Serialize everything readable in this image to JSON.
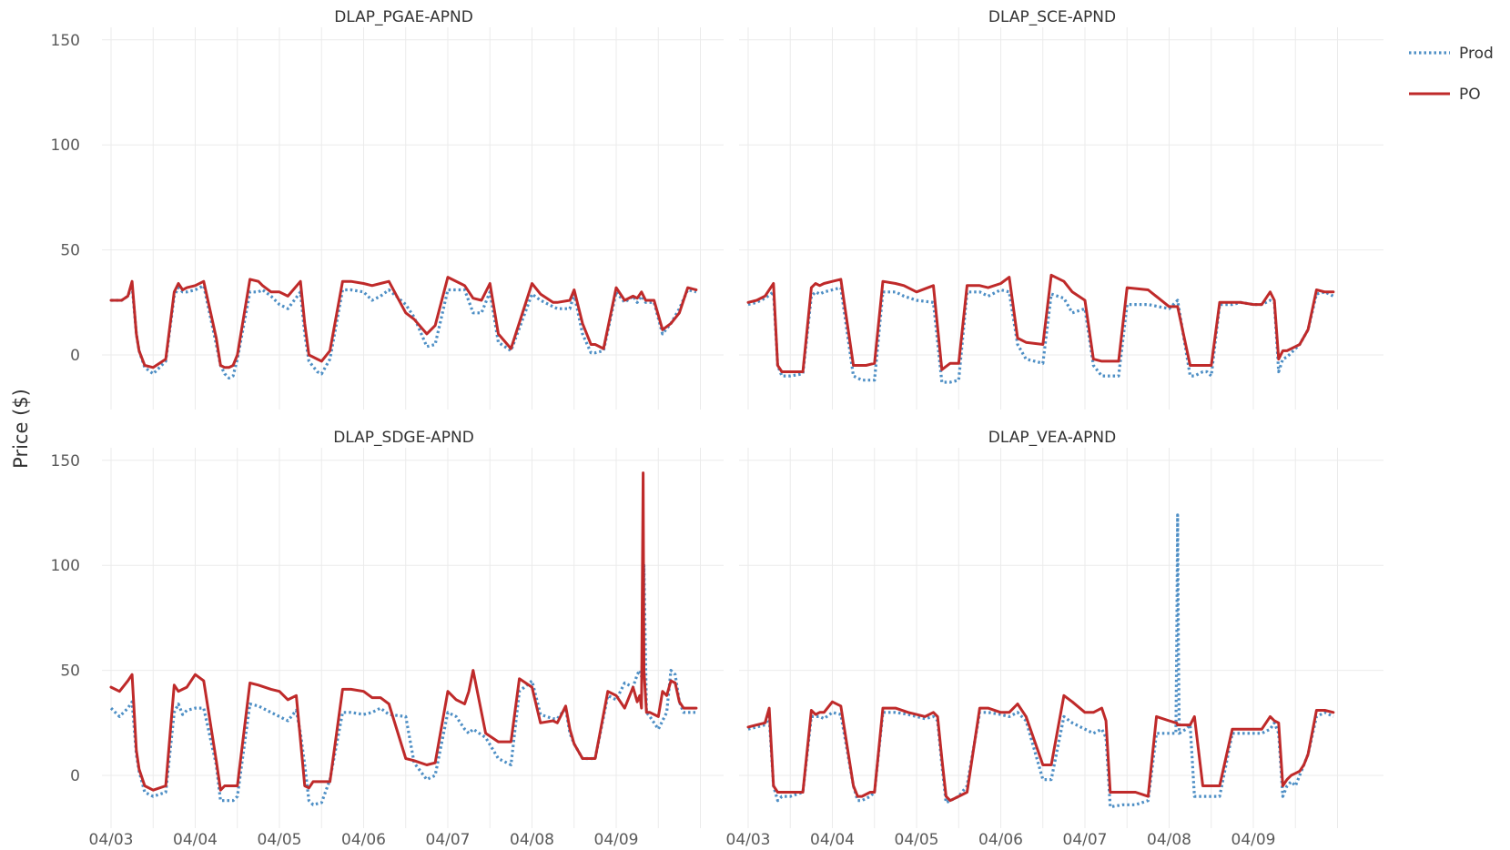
{
  "chart_data": {
    "type": "line",
    "ylabel": "Price ($)",
    "ylim": [
      -25,
      152
    ],
    "yticks": [
      0,
      50,
      100,
      150
    ],
    "x_start": "04/03",
    "x_ticks": [
      "04/03",
      "04/04",
      "04/05",
      "04/06",
      "04/07",
      "04/08",
      "04/09"
    ],
    "grid": true,
    "legend": {
      "position": "top-right",
      "entries": [
        "Prod",
        "PO"
      ]
    },
    "series_styles": [
      {
        "name": "Prod",
        "color": "#4e8fc5",
        "dash": "dotted"
      },
      {
        "name": "PO",
        "color": "#bf2a2a",
        "dash": "solid"
      }
    ],
    "panels": [
      {
        "title": "DLAP_PGAE-APND",
        "x": [
          0,
          0.125,
          0.2,
          0.25,
          0.3,
          0.333,
          0.4,
          0.5,
          0.65,
          0.75,
          0.8,
          0.85,
          0.9,
          1.0,
          1.1,
          1.25,
          1.3,
          1.35,
          1.4,
          1.45,
          1.5,
          1.65,
          1.75,
          1.8,
          1.9,
          2.0,
          2.1,
          2.25,
          2.3,
          2.35,
          2.45,
          2.5,
          2.6,
          2.75,
          2.85,
          3.0,
          3.1,
          3.2,
          3.3,
          3.5,
          3.6,
          3.75,
          3.85,
          4.0,
          4.2,
          4.3,
          4.4,
          4.5,
          4.6,
          4.75,
          5.0,
          5.1,
          5.25,
          5.3,
          5.45,
          5.5,
          5.6,
          5.7,
          5.75,
          5.85,
          6.0,
          6.1,
          6.2,
          6.25,
          6.3,
          6.35,
          6.45,
          6.55,
          6.65,
          6.75,
          6.85,
          6.95
        ],
        "series": [
          {
            "name": "Prod",
            "values": [
              26,
              26,
              28,
              33,
              10,
              2,
              -6,
              -9,
              -3,
              28,
              32,
              30,
              30,
              31,
              33,
              5,
              -5,
              -9,
              -11,
              -10,
              -2,
              30,
              30,
              31,
              28,
              24,
              22,
              30,
              10,
              -3,
              -8,
              -9,
              -2,
              31,
              31,
              30,
              26,
              28,
              31,
              24,
              18,
              4,
              5,
              31,
              31,
              20,
              20,
              30,
              6,
              2,
              29,
              26,
              23,
              22,
              22,
              29,
              10,
              1,
              1,
              2,
              30,
              25,
              28,
              25,
              28,
              25,
              25,
              10,
              15,
              22,
              31,
              30
            ]
          },
          {
            "name": "PO",
            "values": [
              26,
              26,
              28,
              35,
              10,
              2,
              -5,
              -6,
              -2,
              30,
              34,
              31,
              32,
              33,
              35,
              8,
              -5,
              -6,
              -6,
              -5,
              0,
              36,
              35,
              33,
              30,
              30,
              28,
              35,
              15,
              0,
              -2,
              -3,
              2,
              35,
              35,
              34,
              33,
              34,
              35,
              20,
              17,
              10,
              14,
              37,
              33,
              27,
              26,
              34,
              10,
              3,
              34,
              29,
              25,
              25,
              26,
              31,
              15,
              5,
              5,
              3,
              32,
              26,
              28,
              27,
              30,
              26,
              26,
              12,
              15,
              20,
              32,
              31
            ]
          }
        ]
      },
      {
        "title": "DLAP_SCE-APND",
        "x": [
          0,
          0.1,
          0.2,
          0.3,
          0.35,
          0.4,
          0.5,
          0.65,
          0.75,
          0.8,
          0.85,
          0.9,
          1.0,
          1.1,
          1.25,
          1.35,
          1.4,
          1.5,
          1.6,
          1.75,
          1.85,
          2.0,
          2.2,
          2.3,
          2.4,
          2.5,
          2.6,
          2.75,
          2.85,
          3.0,
          3.1,
          3.2,
          3.3,
          3.5,
          3.6,
          3.75,
          3.85,
          4.0,
          4.1,
          4.2,
          4.3,
          4.4,
          4.5,
          4.75,
          5.0,
          5.1,
          5.25,
          5.3,
          5.4,
          5.45,
          5.5,
          5.6,
          5.75,
          5.85,
          6.0,
          6.1,
          6.2,
          6.25,
          6.3,
          6.35,
          6.4,
          6.5,
          6.55,
          6.65,
          6.75,
          6.85,
          6.95
        ],
        "series": [
          {
            "name": "Prod",
            "values": [
              24,
              25,
              27,
              30,
              -5,
              -10,
              -10,
              -9,
              28,
              30,
              29,
              30,
              31,
              32,
              -10,
              -12,
              -12,
              -12,
              30,
              30,
              28,
              26,
              25,
              -13,
              -13,
              -12,
              30,
              30,
              28,
              31,
              30,
              5,
              -2,
              -4,
              29,
              27,
              20,
              22,
              -5,
              -10,
              -10,
              -10,
              24,
              24,
              22,
              26,
              -10,
              -10,
              -8,
              -8,
              -10,
              24,
              24,
              25,
              24,
              24,
              26,
              25,
              -8,
              -2,
              -1,
              3,
              5,
              12,
              29,
              30,
              28
            ]
          },
          {
            "name": "PO",
            "values": [
              25,
              26,
              28,
              34,
              -5,
              -8,
              -8,
              -8,
              32,
              34,
              33,
              34,
              35,
              36,
              -5,
              -5,
              -5,
              -4,
              35,
              34,
              33,
              30,
              33,
              -7,
              -4,
              -4,
              33,
              33,
              32,
              34,
              37,
              8,
              6,
              5,
              38,
              35,
              30,
              26,
              -2,
              -3,
              -3,
              -3,
              32,
              31,
              23,
              23,
              -5,
              -5,
              -5,
              -5,
              -5,
              25,
              25,
              25,
              24,
              24,
              30,
              26,
              -2,
              2,
              2,
              4,
              5,
              12,
              31,
              30,
              30
            ]
          }
        ]
      },
      {
        "title": "DLAP_SDGE-APND",
        "x": [
          0,
          0.1,
          0.2,
          0.25,
          0.3,
          0.333,
          0.4,
          0.5,
          0.65,
          0.75,
          0.8,
          0.85,
          0.9,
          1.0,
          1.1,
          1.25,
          1.3,
          1.35,
          1.45,
          1.5,
          1.65,
          1.75,
          1.9,
          2.0,
          2.1,
          2.2,
          2.25,
          2.3,
          2.35,
          2.4,
          2.5,
          2.6,
          2.75,
          2.85,
          3.0,
          3.1,
          3.2,
          3.3,
          3.5,
          3.6,
          3.75,
          3.85,
          4.0,
          4.1,
          4.2,
          4.25,
          4.3,
          4.45,
          4.6,
          4.75,
          4.85,
          5.0,
          5.1,
          5.25,
          5.3,
          5.4,
          5.45,
          5.5,
          5.6,
          5.75,
          5.9,
          6.0,
          6.1,
          6.2,
          6.25,
          6.28,
          6.3,
          6.32,
          6.33,
          6.36,
          6.4,
          6.5,
          6.55,
          6.6,
          6.65,
          6.7,
          6.75,
          6.8,
          6.95
        ],
        "series": [
          {
            "name": "Prod",
            "values": [
              32,
              28,
              32,
              35,
              10,
              2,
              -8,
              -10,
              -8,
              30,
              34,
              29,
              31,
              32,
              32,
              5,
              -12,
              -12,
              -12,
              -10,
              34,
              33,
              30,
              28,
              26,
              31,
              20,
              5,
              -12,
              -14,
              -13,
              -2,
              30,
              30,
              29,
              30,
              32,
              29,
              28,
              6,
              -2,
              0,
              30,
              28,
              22,
              20,
              22,
              18,
              8,
              5,
              40,
              45,
              29,
              27,
              27,
              32,
              20,
              15,
              8,
              8,
              38,
              36,
              44,
              42,
              48,
              50,
              47,
              60,
              100,
              30,
              28,
              22,
              26,
              30,
              50,
              48,
              35,
              30,
              30
            ]
          },
          {
            "name": "PO",
            "values": [
              42,
              40,
              45,
              48,
              12,
              3,
              -5,
              -7,
              -5,
              43,
              40,
              41,
              42,
              48,
              45,
              7,
              -7,
              -5,
              -5,
              -5,
              44,
              43,
              41,
              40,
              36,
              38,
              17,
              -5,
              -6,
              -3,
              -3,
              -3,
              41,
              41,
              40,
              37,
              37,
              34,
              8,
              7,
              5,
              6,
              40,
              36,
              34,
              40,
              50,
              20,
              16,
              16,
              46,
              42,
              25,
              26,
              25,
              33,
              22,
              15,
              8,
              8,
              40,
              38,
              32,
              42,
              35,
              38,
              32,
              144,
              50,
              30,
              30,
              28,
              40,
              38,
              45,
              44,
              35,
              32,
              32
            ]
          }
        ]
      },
      {
        "title": "DLAP_VEA-APND",
        "x": [
          0,
          0.1,
          0.2,
          0.25,
          0.3,
          0.35,
          0.4,
          0.5,
          0.65,
          0.75,
          0.8,
          0.85,
          0.9,
          1.0,
          1.1,
          1.25,
          1.3,
          1.35,
          1.45,
          1.5,
          1.6,
          1.75,
          1.9,
          2.0,
          2.1,
          2.2,
          2.25,
          2.3,
          2.35,
          2.4,
          2.5,
          2.6,
          2.75,
          2.85,
          3.0,
          3.1,
          3.2,
          3.3,
          3.5,
          3.6,
          3.75,
          3.85,
          4.0,
          4.1,
          4.2,
          4.25,
          4.3,
          4.45,
          4.6,
          4.75,
          4.85,
          5.0,
          5.08,
          5.09,
          5.1,
          5.11,
          5.12,
          5.2,
          5.25,
          5.3,
          5.4,
          5.5,
          5.6,
          5.75,
          5.85,
          6.0,
          6.1,
          6.2,
          6.25,
          6.3,
          6.35,
          6.4,
          6.45,
          6.5,
          6.55,
          6.6,
          6.65,
          6.75,
          6.85,
          6.95
        ],
        "series": [
          {
            "name": "Prod",
            "values": [
              22,
              23,
              24,
              28,
              -5,
              -12,
              -10,
              -10,
              -8,
              28,
              28,
              28,
              27,
              30,
              29,
              -5,
              -12,
              -12,
              -10,
              -8,
              30,
              30,
              29,
              28,
              27,
              28,
              26,
              5,
              -13,
              -12,
              -10,
              -5,
              30,
              30,
              29,
              28,
              30,
              26,
              -2,
              -2,
              28,
              25,
              22,
              20,
              22,
              18,
              -15,
              -14,
              -14,
              -12,
              20,
              20,
              20,
              60,
              124,
              60,
              20,
              22,
              24,
              -10,
              -10,
              -10,
              -10,
              20,
              20,
              20,
              20,
              22,
              25,
              20,
              -10,
              -5,
              -3,
              -5,
              0,
              5,
              10,
              28,
              30,
              28
            ]
          },
          {
            "name": "PO",
            "values": [
              23,
              24,
              25,
              32,
              -5,
              -8,
              -8,
              -8,
              -8,
              31,
              29,
              30,
              30,
              35,
              33,
              -5,
              -10,
              -10,
              -8,
              -8,
              32,
              32,
              30,
              29,
              28,
              30,
              28,
              8,
              -10,
              -12,
              -10,
              -8,
              32,
              32,
              30,
              30,
              34,
              28,
              5,
              5,
              38,
              35,
              30,
              30,
              32,
              26,
              -8,
              -8,
              -8,
              -10,
              28,
              26,
              25,
              25,
              24,
              24,
              24,
              24,
              24,
              28,
              -5,
              -5,
              -5,
              22,
              22,
              22,
              22,
              28,
              26,
              25,
              -5,
              -2,
              0,
              1,
              2,
              5,
              10,
              31,
              31,
              30
            ]
          }
        ]
      }
    ]
  }
}
